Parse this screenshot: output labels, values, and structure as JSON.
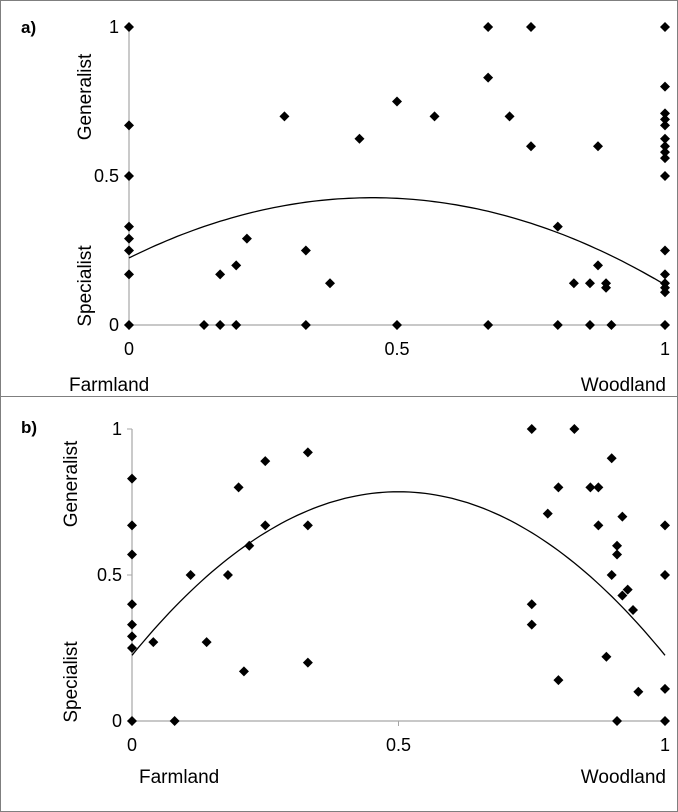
{
  "figure": {
    "panels": [
      {
        "letter": "a)",
        "x_left_label": "Farmland",
        "x_right_label": "Woodland",
        "y_upper_label": "Generalist",
        "y_lower_label": "Specialist"
      },
      {
        "letter": "b)",
        "x_left_label": "Farmland",
        "x_right_label": "Woodland",
        "y_upper_label": "Generalist",
        "y_lower_label": "Specialist"
      }
    ]
  },
  "chart_data": [
    {
      "type": "scatter",
      "title": "a)",
      "xlabel": "",
      "ylabel": "",
      "x_end_labels": [
        "Farmland",
        "Woodland"
      ],
      "y_region_labels": [
        "Specialist",
        "Generalist"
      ],
      "xlim": [
        0,
        1
      ],
      "ylim": [
        0,
        1
      ],
      "xticks": [
        0,
        0.5,
        1
      ],
      "yticks": [
        0,
        0.5,
        1
      ],
      "xtick_labels": [
        "0",
        "0.5",
        "1"
      ],
      "ytick_labels": [
        "0",
        "0.5",
        "1"
      ],
      "grid": false,
      "marker": "diamond",
      "color": "#000000",
      "points": [
        [
          0,
          1
        ],
        [
          0,
          0.67
        ],
        [
          0,
          0.5
        ],
        [
          0,
          0.33
        ],
        [
          0,
          0.29
        ],
        [
          0,
          0.25
        ],
        [
          0,
          0.17
        ],
        [
          0,
          0
        ],
        [
          0.14,
          0
        ],
        [
          0.17,
          0.17
        ],
        [
          0.17,
          0
        ],
        [
          0.2,
          0.2
        ],
        [
          0.2,
          0
        ],
        [
          0.22,
          0.29
        ],
        [
          0.29,
          0.7
        ],
        [
          0.33,
          0.25
        ],
        [
          0.33,
          0
        ],
        [
          0.375,
          0.14
        ],
        [
          0.43,
          0.625
        ],
        [
          0.5,
          0.75
        ],
        [
          0.5,
          0
        ],
        [
          0.57,
          0.7
        ],
        [
          0.67,
          1
        ],
        [
          0.67,
          0.83
        ],
        [
          0.67,
          0
        ],
        [
          0.71,
          0.7
        ],
        [
          0.75,
          1
        ],
        [
          0.75,
          0.6
        ],
        [
          0.8,
          0.33
        ],
        [
          0.8,
          0
        ],
        [
          0.83,
          0.14
        ],
        [
          0.86,
          0.14
        ],
        [
          0.86,
          0
        ],
        [
          0.875,
          0.6
        ],
        [
          0.875,
          0.2
        ],
        [
          0.89,
          0.14
        ],
        [
          0.89,
          0.125
        ],
        [
          0.9,
          0
        ],
        [
          1,
          1
        ],
        [
          1,
          0.8
        ],
        [
          1,
          0.71
        ],
        [
          1,
          0.69
        ],
        [
          1,
          0.67
        ],
        [
          1,
          0.625
        ],
        [
          1,
          0.6
        ],
        [
          1,
          0.58
        ],
        [
          1,
          0.56
        ],
        [
          1,
          0.5
        ],
        [
          1,
          0.25
        ],
        [
          1,
          0.17
        ],
        [
          1,
          0.14
        ],
        [
          1,
          0.125
        ],
        [
          1,
          0.11
        ],
        [
          1,
          0
        ]
      ],
      "trend": {
        "type": "quadratic",
        "coefficients": [
          0.225,
          0.89,
          -0.98
        ]
      }
    },
    {
      "type": "scatter",
      "title": "b)",
      "xlabel": "",
      "ylabel": "",
      "x_end_labels": [
        "Farmland",
        "Woodland"
      ],
      "y_region_labels": [
        "Specialist",
        "Generalist"
      ],
      "xlim": [
        0,
        1
      ],
      "ylim": [
        0,
        1
      ],
      "xticks": [
        0,
        0.5,
        1
      ],
      "yticks": [
        0,
        0.5,
        1
      ],
      "xtick_labels": [
        "0",
        "0.5",
        "1"
      ],
      "ytick_labels": [
        "0",
        "0.5",
        "1"
      ],
      "grid": false,
      "marker": "diamond",
      "color": "#000000",
      "points": [
        [
          0,
          0.83
        ],
        [
          0,
          0.67
        ],
        [
          0,
          0.57
        ],
        [
          0,
          0.4
        ],
        [
          0,
          0.33
        ],
        [
          0,
          0.29
        ],
        [
          0,
          0.25
        ],
        [
          0,
          0
        ],
        [
          0.04,
          0.27
        ],
        [
          0.08,
          0
        ],
        [
          0.11,
          0.5
        ],
        [
          0.14,
          0.27
        ],
        [
          0.18,
          0.5
        ],
        [
          0.2,
          0.8
        ],
        [
          0.21,
          0.17
        ],
        [
          0.22,
          0.6
        ],
        [
          0.25,
          0.89
        ],
        [
          0.25,
          0.67
        ],
        [
          0.33,
          0.92
        ],
        [
          0.33,
          0.67
        ],
        [
          0.33,
          0.2
        ],
        [
          0.75,
          1
        ],
        [
          0.75,
          0.4
        ],
        [
          0.75,
          0.33
        ],
        [
          0.78,
          0.71
        ],
        [
          0.8,
          0.8
        ],
        [
          0.8,
          0.14
        ],
        [
          0.83,
          1
        ],
        [
          0.86,
          0.8
        ],
        [
          0.875,
          0.8
        ],
        [
          0.875,
          0.67
        ],
        [
          0.89,
          0.22
        ],
        [
          0.9,
          0.9
        ],
        [
          0.9,
          0.5
        ],
        [
          0.91,
          0.6
        ],
        [
          0.91,
          0.57
        ],
        [
          0.91,
          0
        ],
        [
          0.92,
          0.7
        ],
        [
          0.92,
          0.43
        ],
        [
          0.93,
          0.45
        ],
        [
          0.94,
          0.38
        ],
        [
          0.95,
          0.1
        ],
        [
          1,
          0.67
        ],
        [
          1,
          0.5
        ],
        [
          1,
          0.11
        ],
        [
          1,
          0
        ]
      ],
      "trend": {
        "type": "quadratic",
        "coefficients": [
          0.225,
          2.24,
          -2.24
        ]
      }
    }
  ]
}
